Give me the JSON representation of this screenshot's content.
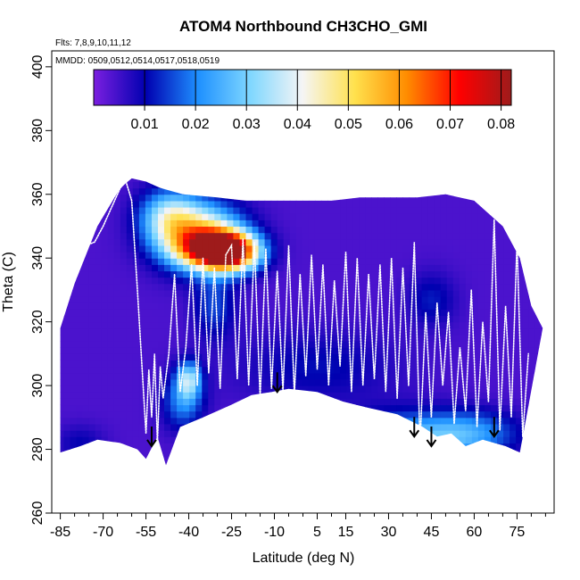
{
  "chart_data": {
    "type": "heatmap",
    "title": "ATOM4 Northbound CH3CHO_GMI",
    "flights_label": "Flts: 7,8,9,10,11,12",
    "dates_label": "MMDD: 0509,0512,0514,0517,0518,0519",
    "xlabel": "Latitude (deg N)",
    "ylabel": "Theta (C)",
    "xlim": [
      -88,
      88
    ],
    "ylim": [
      260,
      405
    ],
    "x_ticks": [
      -85,
      -70,
      -55,
      -40,
      -25,
      -10,
      5,
      15,
      30,
      45,
      60,
      75
    ],
    "x_tick_labels": [
      "-85",
      "-70",
      "-55",
      "-40",
      "-25",
      "-10",
      "5",
      "15",
      "30",
      "45",
      "60",
      "75"
    ],
    "y_ticks": [
      260,
      280,
      300,
      320,
      340,
      360,
      380,
      400
    ],
    "y_tick_labels": [
      "260",
      "280",
      "300",
      "320",
      "340",
      "360",
      "380",
      "400"
    ],
    "colorbar": {
      "min": 0.0,
      "max": 0.082,
      "ticks": [
        0.01,
        0.02,
        0.03,
        0.04,
        0.05,
        0.06,
        0.07,
        0.08
      ],
      "tick_labels": [
        "0.01",
        "0.02",
        "0.03",
        "0.04",
        "0.05",
        "0.06",
        "0.07",
        "0.08"
      ],
      "colors": [
        "#7b1fe0",
        "#0000b0",
        "#1e90ff",
        "#7fd7ff",
        "#f5f5f5",
        "#ffe14d",
        "#ff8c00",
        "#ff0000",
        "#9e1b1b"
      ]
    },
    "background_value": 0.004,
    "floor_profile": {
      "lat": [
        -85,
        -78,
        -72,
        -64,
        -58,
        -55,
        -51,
        -48,
        -43,
        -35,
        -25,
        -18,
        -11,
        -5,
        5,
        14,
        23,
        33,
        42,
        47,
        52,
        57,
        63,
        67,
        71,
        76
      ],
      "theta": [
        279,
        281,
        283,
        282,
        280,
        277,
        284,
        275,
        287,
        290,
        294,
        297,
        298,
        299,
        298,
        295,
        293,
        291,
        287,
        284,
        285,
        281,
        283,
        282,
        281,
        279
      ]
    },
    "top_profile": {
      "lat": [
        -85,
        -80,
        -72,
        -64,
        -60,
        -55,
        -50,
        -42,
        -30,
        -20,
        -12,
        0,
        10,
        20,
        30,
        40,
        50,
        60,
        70,
        76,
        80,
        84
      ],
      "theta": [
        318,
        332,
        350,
        362,
        365,
        364,
        362,
        360,
        359,
        358,
        358,
        358,
        358,
        359,
        359,
        359,
        360,
        358,
        350,
        340,
        325,
        318
      ]
    },
    "anomalies": [
      {
        "lat": -26,
        "theta": 342,
        "value": 0.072,
        "sx": 7,
        "sy": 4
      },
      {
        "lat": -36,
        "theta": 347,
        "value": 0.048,
        "sx": 10,
        "sy": 7
      },
      {
        "lat": -47,
        "theta": 353,
        "value": 0.03,
        "sx": 7,
        "sy": 6
      },
      {
        "lat": -32,
        "theta": 343,
        "value": 0.04,
        "sx": 9,
        "sy": 4
      },
      {
        "lat": -40,
        "theta": 302,
        "value": 0.03,
        "sx": 3,
        "sy": 4
      },
      {
        "lat": -42,
        "theta": 295,
        "value": 0.02,
        "sx": 5,
        "sy": 6
      },
      {
        "lat": -31,
        "theta": 325,
        "value": 0.015,
        "sx": 5,
        "sy": 7
      },
      {
        "lat": 45,
        "theta": 327,
        "value": 0.012,
        "sx": 6,
        "sy": 6
      },
      {
        "lat": 35,
        "theta": 283,
        "value": 0.024,
        "sx": 14,
        "sy": 6
      },
      {
        "lat": 58,
        "theta": 285,
        "value": 0.022,
        "sx": 12,
        "sy": 5
      },
      {
        "lat": 5,
        "theta": 306,
        "value": 0.011,
        "sx": 20,
        "sy": 8
      },
      {
        "lat": -78,
        "theta": 282,
        "value": 0.01,
        "sx": 6,
        "sy": 4
      }
    ],
    "flight_track": {
      "lat": [
        -86,
        -82,
        -79,
        -76,
        -73,
        -70,
        -67,
        -64,
        -62,
        -60,
        -58,
        -56,
        -55,
        -54,
        -53,
        -52,
        -51,
        -50,
        -49,
        -47,
        -45,
        -43,
        -41,
        -39,
        -37,
        -35,
        -33,
        -31,
        -29,
        -27,
        -25,
        -23,
        -21,
        -19,
        -17,
        -15,
        -13,
        -11,
        -9,
        -7,
        -5,
        -3,
        -1,
        1,
        3,
        5,
        7,
        9,
        11,
        13,
        15,
        17,
        19,
        21,
        23,
        25,
        27,
        29,
        31,
        33,
        35,
        37,
        39,
        41,
        43,
        45,
        47,
        49,
        51,
        53,
        55,
        57,
        59,
        61,
        63,
        65,
        67,
        69,
        71,
        73,
        75,
        77,
        79
      ],
      "theta": [
        326,
        335,
        340,
        344,
        345,
        350,
        356,
        362,
        364,
        358,
        330,
        300,
        285,
        305,
        290,
        310,
        282,
        306,
        296,
        310,
        335,
        298,
        312,
        338,
        300,
        340,
        304,
        337,
        299,
        341,
        344,
        302,
        346,
        300,
        345,
        296,
        343,
        299,
        336,
        298,
        344,
        297,
        335,
        303,
        341,
        305,
        338,
        300,
        333,
        306,
        342,
        298,
        340,
        300,
        335,
        302,
        338,
        298,
        340,
        296,
        337,
        300,
        345,
        282,
        323,
        290,
        326,
        300,
        323,
        288,
        312,
        292,
        330,
        287,
        320,
        295,
        352,
        286,
        325,
        290,
        345,
        284,
        310
      ]
    },
    "arrows": [
      {
        "lat": -53,
        "theta": 281
      },
      {
        "lat": -9,
        "theta": 298
      },
      {
        "lat": 39,
        "theta": 284
      },
      {
        "lat": 45,
        "theta": 281
      },
      {
        "lat": 67,
        "theta": 284
      }
    ]
  }
}
